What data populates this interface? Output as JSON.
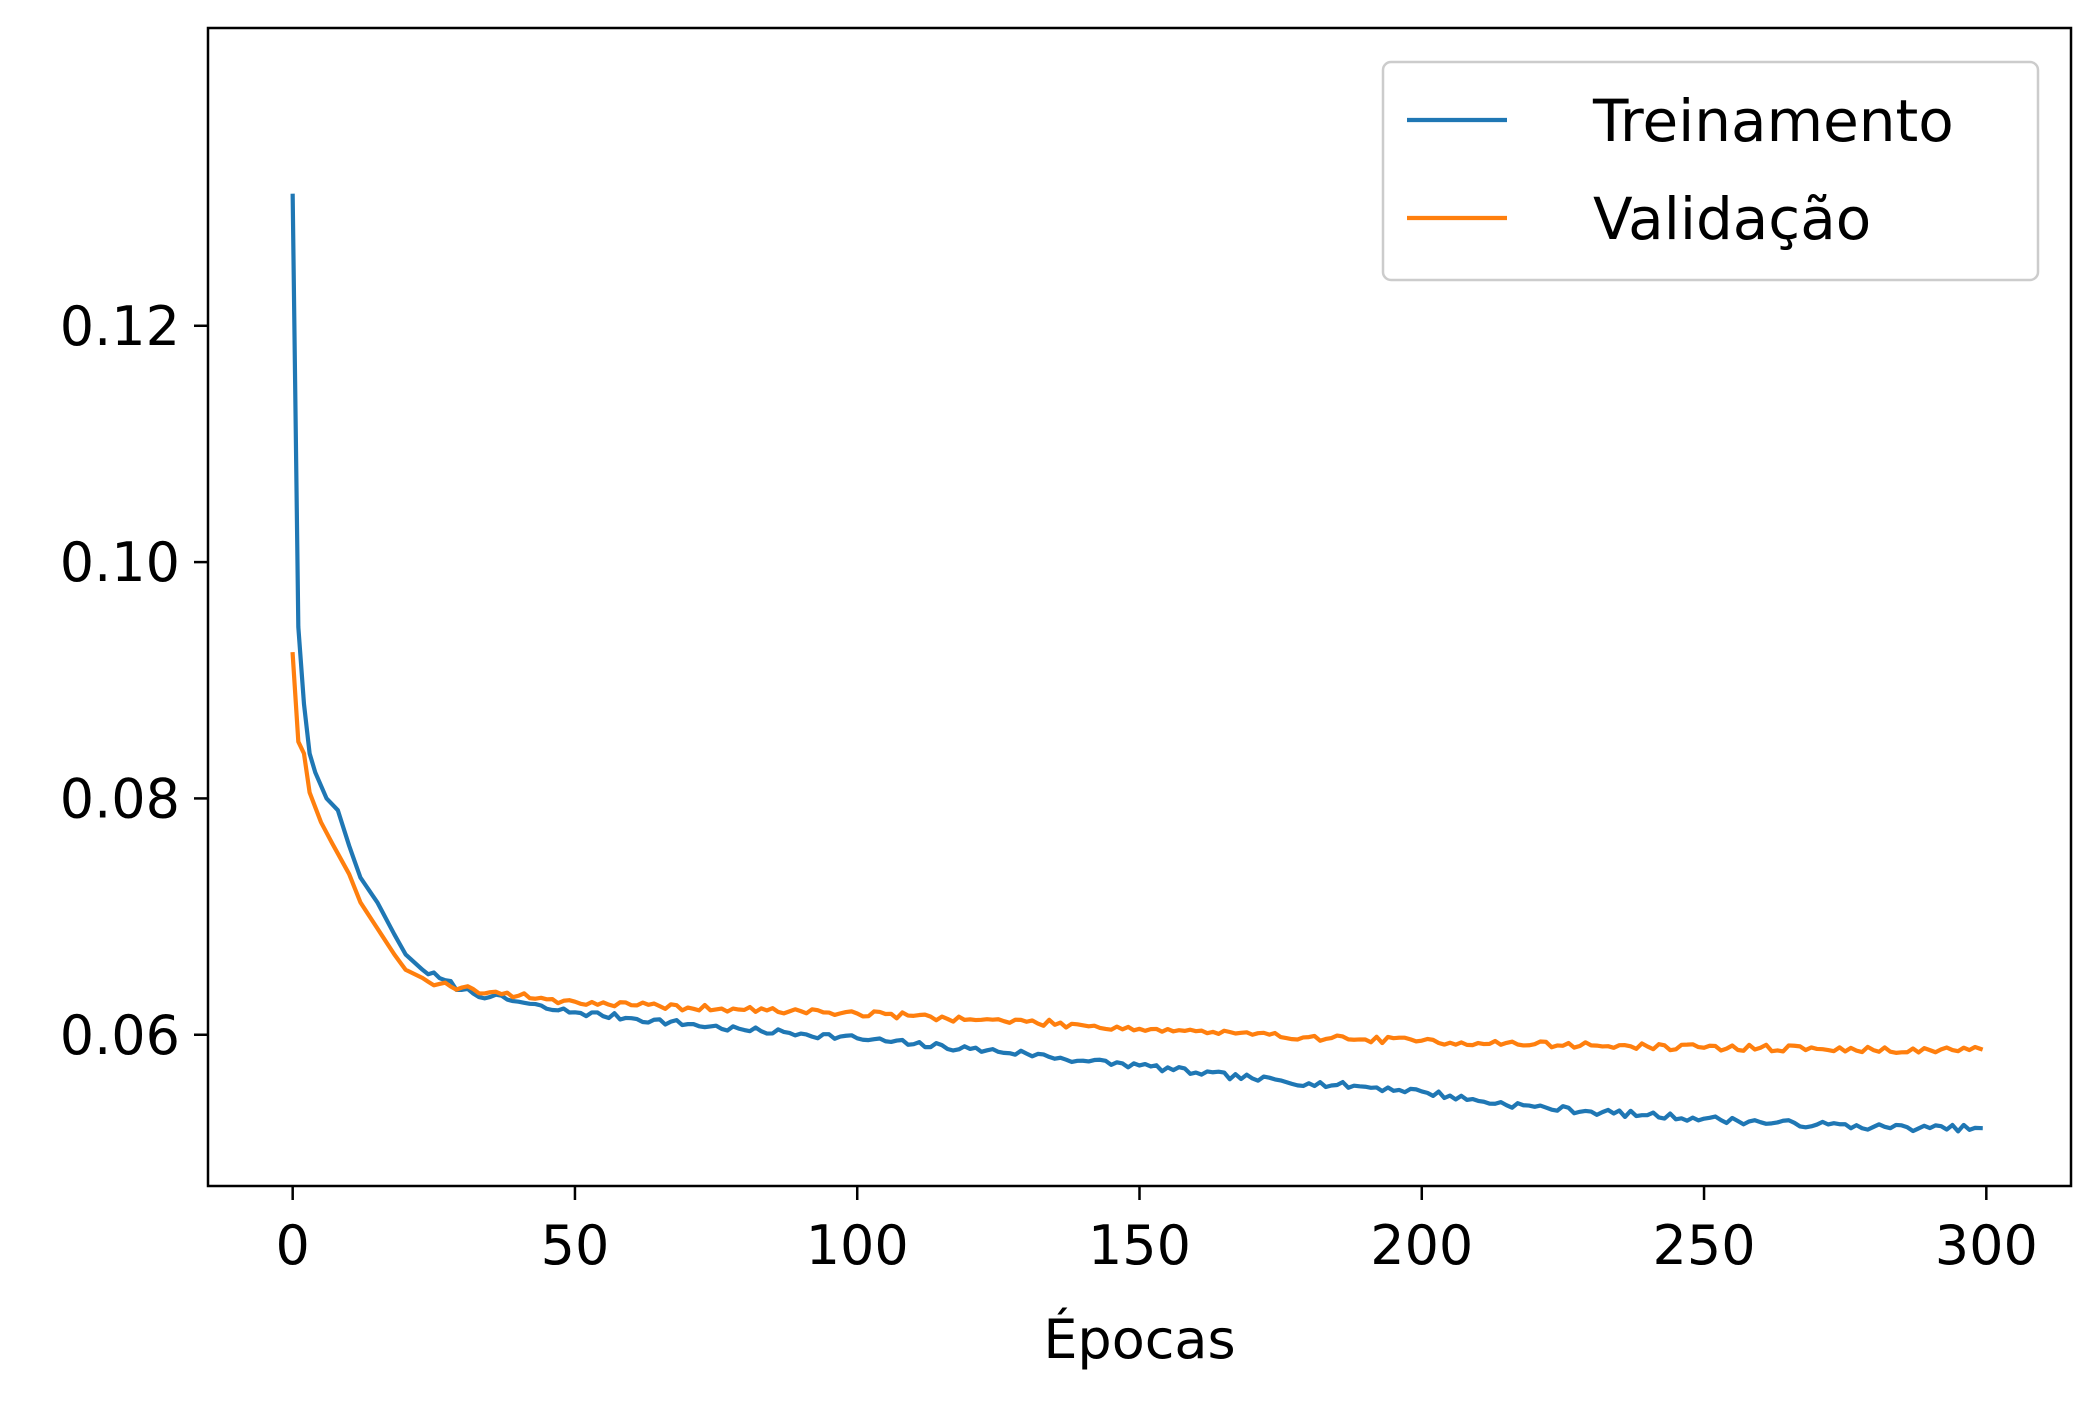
{
  "chart_data": {
    "type": "line",
    "title": "",
    "xlabel": "Épocas",
    "ylabel": "",
    "xlim": [
      -15,
      315
    ],
    "ylim": [
      0.0472,
      0.1452
    ],
    "xticks": [
      0,
      50,
      100,
      150,
      200,
      250,
      300
    ],
    "yticks": [
      0.06,
      0.08,
      0.1,
      0.12
    ],
    "xtick_labels": [
      "0",
      "50",
      "100",
      "150",
      "200",
      "250",
      "300"
    ],
    "ytick_labels": [
      "0.06",
      "0.08",
      "0.10",
      "0.12"
    ],
    "grid": false,
    "legend_position": "top-right",
    "series": [
      {
        "name": "Treinamento",
        "color": "#1f77b4",
        "anchors": [
          [
            0,
            0.131
          ],
          [
            1,
            0.0945
          ],
          [
            2,
            0.088
          ],
          [
            3,
            0.0838
          ],
          [
            4,
            0.0822
          ],
          [
            6,
            0.08
          ],
          [
            8,
            0.079
          ],
          [
            10,
            0.076
          ],
          [
            12,
            0.0733
          ],
          [
            15,
            0.0712
          ],
          [
            18,
            0.0685
          ],
          [
            20,
            0.0668
          ],
          [
            23,
            0.0655
          ],
          [
            26,
            0.0648
          ],
          [
            30,
            0.0638
          ],
          [
            35,
            0.0632
          ],
          [
            40,
            0.0628
          ],
          [
            45,
            0.0622
          ],
          [
            50,
            0.0619
          ],
          [
            60,
            0.0614
          ],
          [
            70,
            0.0609
          ],
          [
            80,
            0.0604
          ],
          [
            90,
            0.0601
          ],
          [
            100,
            0.0597
          ],
          [
            110,
            0.0592
          ],
          [
            120,
            0.0588
          ],
          [
            130,
            0.0584
          ],
          [
            140,
            0.0578
          ],
          [
            150,
            0.0574
          ],
          [
            160,
            0.0568
          ],
          [
            170,
            0.0563
          ],
          [
            180,
            0.0559
          ],
          [
            190,
            0.0556
          ],
          [
            200,
            0.0552
          ],
          [
            210,
            0.0544
          ],
          [
            220,
            0.0539
          ],
          [
            230,
            0.0535
          ],
          [
            240,
            0.0532
          ],
          [
            250,
            0.0529
          ],
          [
            260,
            0.0526
          ],
          [
            270,
            0.0524
          ],
          [
            280,
            0.0522
          ],
          [
            290,
            0.0521
          ],
          [
            299,
            0.0521
          ]
        ],
        "noise": 0.00028,
        "seed": 7
      },
      {
        "name": "Validação",
        "color": "#ff7f0e",
        "anchors": [
          [
            0,
            0.0922
          ],
          [
            1,
            0.0848
          ],
          [
            2,
            0.0838
          ],
          [
            3,
            0.0805
          ],
          [
            5,
            0.078
          ],
          [
            7,
            0.0762
          ],
          [
            10,
            0.0736
          ],
          [
            12,
            0.0712
          ],
          [
            15,
            0.069
          ],
          [
            18,
            0.0668
          ],
          [
            20,
            0.0655
          ],
          [
            23,
            0.0648
          ],
          [
            26,
            0.0643
          ],
          [
            30,
            0.064
          ],
          [
            35,
            0.0636
          ],
          [
            40,
            0.0633
          ],
          [
            45,
            0.063
          ],
          [
            50,
            0.0628
          ],
          [
            60,
            0.0625
          ],
          [
            70,
            0.0623
          ],
          [
            80,
            0.0621
          ],
          [
            90,
            0.062
          ],
          [
            100,
            0.0618
          ],
          [
            110,
            0.0616
          ],
          [
            120,
            0.0613
          ],
          [
            130,
            0.0611
          ],
          [
            140,
            0.0608
          ],
          [
            150,
            0.0605
          ],
          [
            160,
            0.0603
          ],
          [
            170,
            0.06
          ],
          [
            180,
            0.0598
          ],
          [
            190,
            0.0596
          ],
          [
            200,
            0.0595
          ],
          [
            210,
            0.0593
          ],
          [
            220,
            0.0592
          ],
          [
            230,
            0.0591
          ],
          [
            240,
            0.059
          ],
          [
            250,
            0.0589
          ],
          [
            260,
            0.0589
          ],
          [
            270,
            0.0588
          ],
          [
            280,
            0.0587
          ],
          [
            290,
            0.0587
          ],
          [
            299,
            0.0588
          ]
        ],
        "noise": 0.00028,
        "seed": 19
      }
    ]
  }
}
